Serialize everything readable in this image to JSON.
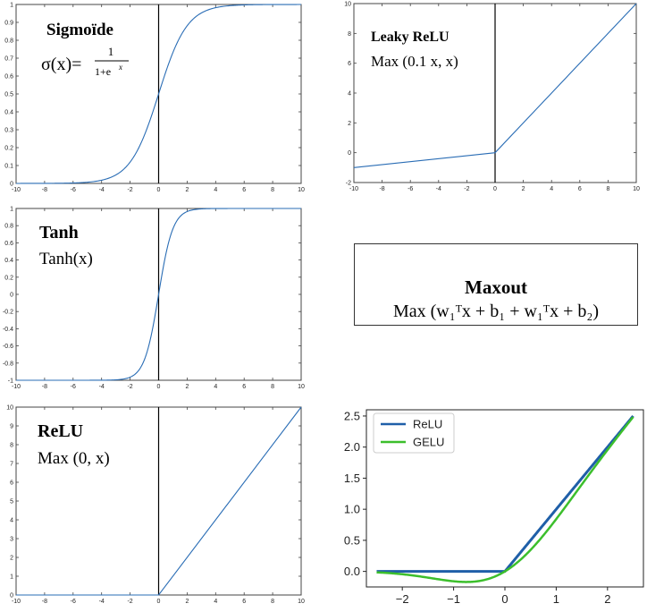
{
  "chart_data": [
    {
      "id": "sigmoid",
      "type": "line",
      "title": "Sigmoïde",
      "formula_prefix": "σ(x)=",
      "formula_num": "1",
      "formula_den": "1+e",
      "formula_exp": "x",
      "xlim": [
        -10,
        10
      ],
      "ylim": [
        0,
        1
      ],
      "xticks": [
        -10,
        -8,
        -6,
        -4,
        -2,
        0,
        2,
        4,
        6,
        8,
        10
      ],
      "yticks": [
        0,
        0.1,
        0.2,
        0.3,
        0.4,
        0.5,
        0.6,
        0.7,
        0.8,
        0.9,
        1
      ],
      "function": "sigmoid",
      "series_color": "#2a6db5"
    },
    {
      "id": "leaky",
      "type": "line",
      "title": "Leaky ReLU",
      "formula_text": "Max (0.1 x, x)",
      "xlim": [
        -10,
        10
      ],
      "ylim": [
        -2,
        10
      ],
      "xticks": [
        -10,
        -8,
        -6,
        -4,
        -2,
        0,
        2,
        4,
        6,
        8,
        10
      ],
      "yticks": [
        -2,
        0,
        2,
        4,
        6,
        8,
        10
      ],
      "points": [
        [
          -10,
          -1
        ],
        [
          0,
          0
        ],
        [
          10,
          10
        ]
      ],
      "series_color": "#2a6db5"
    },
    {
      "id": "tanh",
      "type": "line",
      "title": "Tanh",
      "formula_text": "Tanh(x)",
      "xlim": [
        -10,
        10
      ],
      "ylim": [
        -1,
        1
      ],
      "xticks": [
        -10,
        -8,
        -6,
        -4,
        -2,
        0,
        2,
        4,
        6,
        8,
        10
      ],
      "yticks": [
        -1,
        -0.8,
        -0.6,
        -0.4,
        -0.2,
        0,
        0.2,
        0.4,
        0.6,
        0.8,
        1
      ],
      "function": "tanh",
      "series_color": "#2a6db5"
    },
    {
      "id": "relu",
      "type": "line",
      "title": "ReLU",
      "formula_text": "Max (0, x)",
      "xlim": [
        -10,
        10
      ],
      "ylim": [
        0,
        10
      ],
      "xticks": [
        -10,
        -8,
        -6,
        -4,
        -2,
        0,
        2,
        4,
        6,
        8,
        10
      ],
      "yticks": [
        0,
        1,
        2,
        3,
        4,
        5,
        6,
        7,
        8,
        9,
        10
      ],
      "points": [
        [
          -10,
          0
        ],
        [
          0,
          0
        ],
        [
          10,
          10
        ]
      ],
      "series_color": "#2a6db5"
    },
    {
      "id": "relu-gelu",
      "type": "line",
      "xlim": [
        -2.7,
        2.7
      ],
      "ylim": [
        -0.25,
        2.6
      ],
      "xticks": [
        -2,
        -1,
        0,
        1,
        2
      ],
      "yticks": [
        0.0,
        0.5,
        1.0,
        1.5,
        2.0,
        2.5
      ],
      "legend_position": "top-left",
      "series": [
        {
          "name": "ReLU",
          "color": "#1f5fa8",
          "function": "relu",
          "x_range": [
            -2.5,
            2.5
          ]
        },
        {
          "name": "GELU",
          "color": "#3cbf2c",
          "function": "gelu",
          "x_range": [
            -2.5,
            2.5
          ]
        }
      ]
    }
  ],
  "maxout": {
    "title": "Maxout",
    "formula": "Max (w₁ᵀx + b₁ +  w₁ᵀx + b₂)"
  }
}
